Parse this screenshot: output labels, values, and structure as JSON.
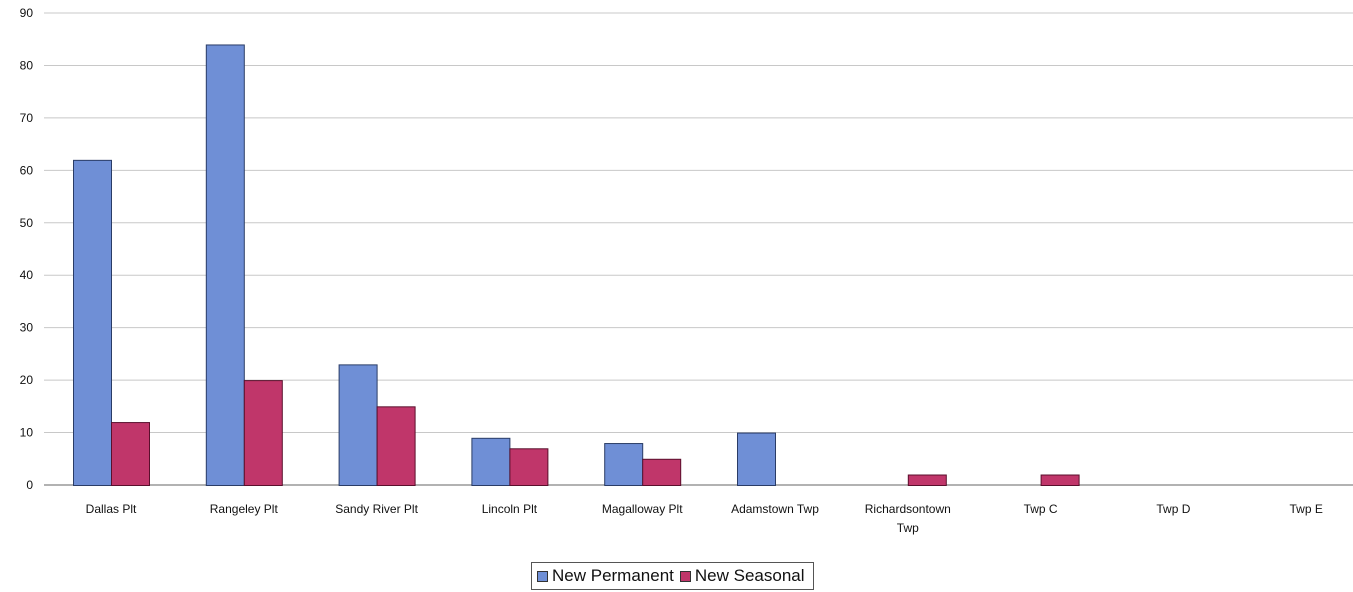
{
  "chart_data": {
    "type": "bar",
    "title": "",
    "xlabel": "",
    "ylabel": "",
    "ylim": [
      0,
      90
    ],
    "yticks": [
      0,
      10,
      20,
      30,
      40,
      50,
      60,
      70,
      80,
      90
    ],
    "grid": true,
    "legend_position": "bottom",
    "categories": [
      "Dallas Plt",
      "Rangeley Plt",
      "Sandy River Plt",
      "Lincoln Plt",
      "Magalloway Plt",
      "Adamstown Twp",
      "Richardsontown Twp",
      "Twp C",
      "Twp D",
      "Twp E"
    ],
    "series": [
      {
        "name": "New Permanent",
        "color": "#6f8fd6",
        "values": [
          62,
          84,
          23,
          9,
          8,
          10,
          0,
          0,
          0,
          0
        ]
      },
      {
        "name": "New Seasonal",
        "color": "#c0366a",
        "values": [
          12,
          20,
          15,
          7,
          5,
          0,
          2,
          2,
          0,
          0
        ]
      }
    ]
  }
}
